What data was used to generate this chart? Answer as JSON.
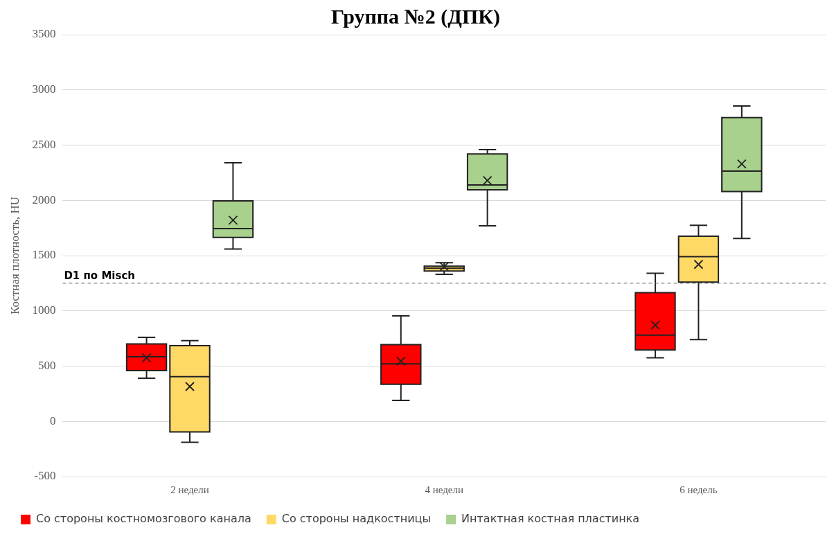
{
  "chart_data": {
    "type": "box",
    "title": "Группа №2 (ДПК)",
    "ylabel": "Костная плотность, HU",
    "categories": [
      "2 недели",
      "4 недели",
      "6 недель"
    ],
    "series": [
      {
        "name": "Со стороны костномозгового канала",
        "color": "#ff0000",
        "boxes": [
          {
            "low": 390,
            "q1": 460,
            "median": 585,
            "q3": 700,
            "high": 760,
            "mean": 575
          },
          {
            "low": 190,
            "q1": 335,
            "median": 520,
            "q3": 695,
            "high": 955,
            "mean": 545
          },
          {
            "low": 575,
            "q1": 645,
            "median": 780,
            "q3": 1165,
            "high": 1340,
            "mean": 870
          }
        ]
      },
      {
        "name": "Со стороны надкостницы",
        "color": "#ffd966",
        "boxes": [
          {
            "low": -190,
            "q1": -95,
            "median": 405,
            "q3": 685,
            "high": 730,
            "mean": 315
          },
          {
            "low": 1330,
            "q1": 1360,
            "median": 1385,
            "q3": 1405,
            "high": 1435,
            "mean": 1400
          },
          {
            "low": 740,
            "q1": 1260,
            "median": 1490,
            "q3": 1675,
            "high": 1775,
            "mean": 1420
          }
        ]
      },
      {
        "name": "Интактная костная пластинка",
        "color": "#a9d18e",
        "boxes": [
          {
            "low": 1560,
            "q1": 1665,
            "median": 1745,
            "q3": 1995,
            "high": 2340,
            "mean": 1820
          },
          {
            "low": 1770,
            "q1": 2095,
            "median": 2140,
            "q3": 2420,
            "high": 2460,
            "mean": 2180
          },
          {
            "low": 1655,
            "q1": 2080,
            "median": 2265,
            "q3": 2750,
            "high": 2855,
            "mean": 2330
          }
        ]
      }
    ],
    "ylim": [
      -500,
      3500
    ],
    "yticks": [
      -500,
      0,
      500,
      1000,
      1500,
      2000,
      2500,
      3000,
      3500
    ],
    "grid": "y",
    "legend": "bottom",
    "ref_lines": [
      {
        "axis": "y",
        "value": 1250,
        "label": "D1 по Misch",
        "line_style": "dashed"
      }
    ]
  }
}
